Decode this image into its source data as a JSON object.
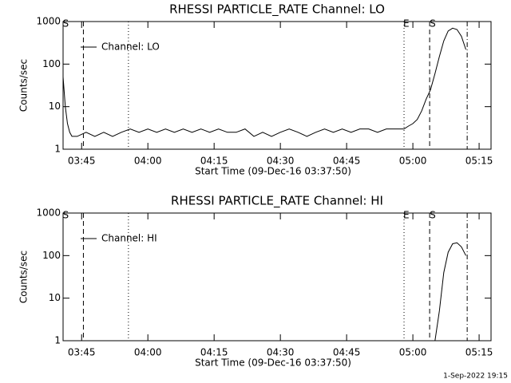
{
  "chart_data": [
    {
      "type": "line",
      "title": "RHESSI PARTICLE_RATE Channel: LO",
      "xlabel": "Start Time (09-Dec-16 03:37:50)",
      "ylabel": "Counts/sec",
      "log_y": true,
      "legend": "upper left",
      "xlim": [
        220.8,
        317.7
      ],
      "ylim": [
        1,
        1000
      ],
      "xticks": [
        {
          "value": 225,
          "label": "03:45"
        },
        {
          "value": 240,
          "label": "04:00"
        },
        {
          "value": 255,
          "label": "04:15"
        },
        {
          "value": 270,
          "label": "04:30"
        },
        {
          "value": 285,
          "label": "04:45"
        },
        {
          "value": 300,
          "label": "05:00"
        },
        {
          "value": 315,
          "label": "05:15"
        }
      ],
      "yticks": [
        1,
        10,
        100,
        1000
      ],
      "vlines": [
        {
          "x": 225.4,
          "style": "dashed"
        },
        {
          "x": 235.6,
          "style": "dotted"
        },
        {
          "x": 298,
          "style": "dotted"
        },
        {
          "x": 303.8,
          "style": "dashed"
        },
        {
          "x": 312.3,
          "style": "dashdot"
        }
      ],
      "flags": [
        {
          "x": 221.4,
          "label": "S"
        },
        {
          "x": 298.5,
          "label": "E"
        },
        {
          "x": 304.5,
          "label": "S"
        }
      ],
      "x": [
        220.8,
        221.3,
        221.8,
        222.3,
        222.8,
        224,
        226,
        228,
        230,
        232,
        234,
        236,
        238,
        240,
        242,
        244,
        246,
        248,
        250,
        252,
        254,
        256,
        258,
        260,
        262,
        264,
        266,
        268,
        270,
        272,
        274,
        276,
        278,
        280,
        282,
        284,
        286,
        288,
        290,
        292,
        294,
        296,
        298,
        299,
        300,
        301,
        302,
        303,
        304,
        305,
        306,
        307,
        308,
        309,
        310,
        311,
        312
      ],
      "series": [
        {
          "name": "Channel: LO",
          "color": "#000000",
          "values": [
            50,
            10,
            4,
            2.5,
            2,
            2,
            2.5,
            2,
            2.5,
            2,
            2.5,
            3,
            2.5,
            3,
            2.5,
            3,
            2.5,
            3,
            2.5,
            3,
            2.5,
            3,
            2.5,
            2.5,
            3,
            2,
            2.5,
            2,
            2.5,
            3,
            2.5,
            2,
            2.5,
            3,
            2.5,
            3,
            2.5,
            3,
            3,
            2.5,
            3,
            3,
            3,
            3.5,
            4,
            5,
            8,
            15,
            25,
            60,
            150,
            350,
            600,
            700,
            650,
            450,
            220
          ]
        }
      ]
    },
    {
      "type": "line",
      "title": "RHESSI PARTICLE_RATE Channel: HI",
      "xlabel": "Start Time (09-Dec-16 03:37:50)",
      "ylabel": "Counts/sec",
      "log_y": true,
      "legend": "upper left",
      "xlim": [
        220.8,
        317.7
      ],
      "ylim": [
        1,
        1000
      ],
      "xticks": [
        {
          "value": 225,
          "label": "03:45"
        },
        {
          "value": 240,
          "label": "04:00"
        },
        {
          "value": 255,
          "label": "04:15"
        },
        {
          "value": 270,
          "label": "04:30"
        },
        {
          "value": 285,
          "label": "04:45"
        },
        {
          "value": 300,
          "label": "05:00"
        },
        {
          "value": 315,
          "label": "05:15"
        }
      ],
      "yticks": [
        1,
        10,
        100,
        1000
      ],
      "vlines": [
        {
          "x": 225.4,
          "style": "dashed"
        },
        {
          "x": 235.6,
          "style": "dotted"
        },
        {
          "x": 298,
          "style": "dotted"
        },
        {
          "x": 303.8,
          "style": "dashed"
        },
        {
          "x": 312.3,
          "style": "dashdot"
        }
      ],
      "flags": [
        {
          "x": 221.4,
          "label": "S"
        },
        {
          "x": 298.5,
          "label": "E"
        },
        {
          "x": 304.5,
          "label": "S"
        }
      ],
      "x": [
        305,
        306,
        307,
        308,
        309,
        310,
        311,
        312
      ],
      "series": [
        {
          "name": "Channel: HI",
          "color": "#000000",
          "values": [
            1,
            5,
            40,
            120,
            190,
            200,
            160,
            100
          ]
        }
      ]
    }
  ],
  "timestamp": "1-Sep-2022 19:15"
}
